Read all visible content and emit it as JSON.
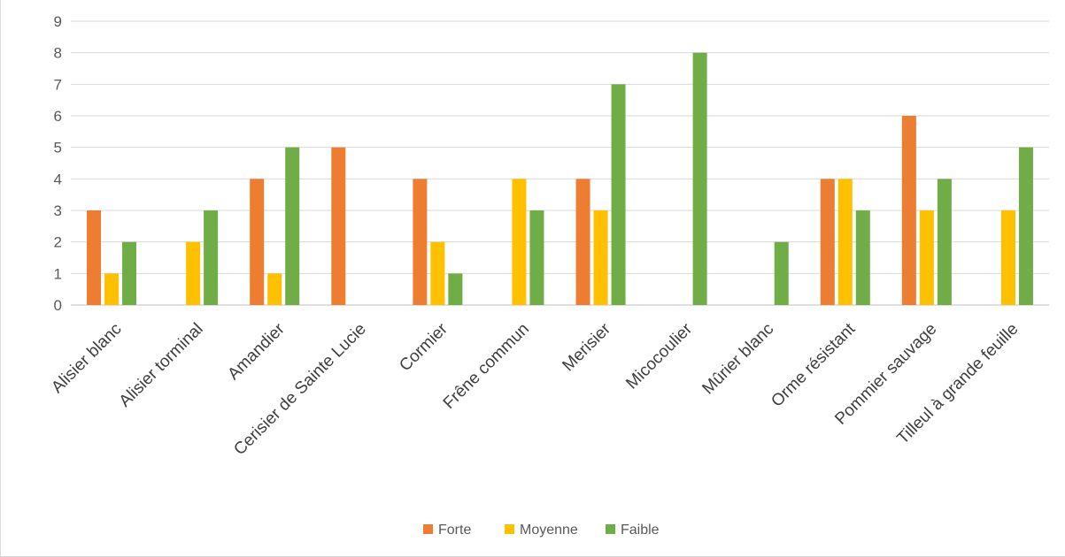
{
  "chart_data": {
    "type": "bar",
    "title": "",
    "xlabel": "",
    "ylabel": "",
    "ylim": [
      0,
      9
    ],
    "yticks": [
      0,
      1,
      2,
      3,
      4,
      5,
      6,
      7,
      8,
      9
    ],
    "grid": true,
    "legend_position": "bottom",
    "categories": [
      "Alisier blanc",
      "Alisier torminal",
      "Amandier",
      "Cerisier de Sainte Lucie",
      "Cormier",
      "Frêne commun",
      "Merisier",
      "Micocoulier",
      "Mûrier blanc",
      "Orme résistant",
      "Pommier sauvage",
      "Tilleul à grande feuille"
    ],
    "series": [
      {
        "name": "Forte",
        "color": "#ED7D31",
        "values": [
          3,
          0,
          4,
          5,
          4,
          0,
          4,
          0,
          0,
          4,
          6,
          0
        ]
      },
      {
        "name": "Moyenne",
        "color": "#FFC000",
        "values": [
          1,
          2,
          1,
          0,
          2,
          4,
          3,
          0,
          0,
          4,
          3,
          3
        ]
      },
      {
        "name": "Faible",
        "color": "#70AD47",
        "values": [
          2,
          3,
          5,
          0,
          1,
          3,
          7,
          8,
          2,
          3,
          4,
          5
        ]
      }
    ]
  }
}
